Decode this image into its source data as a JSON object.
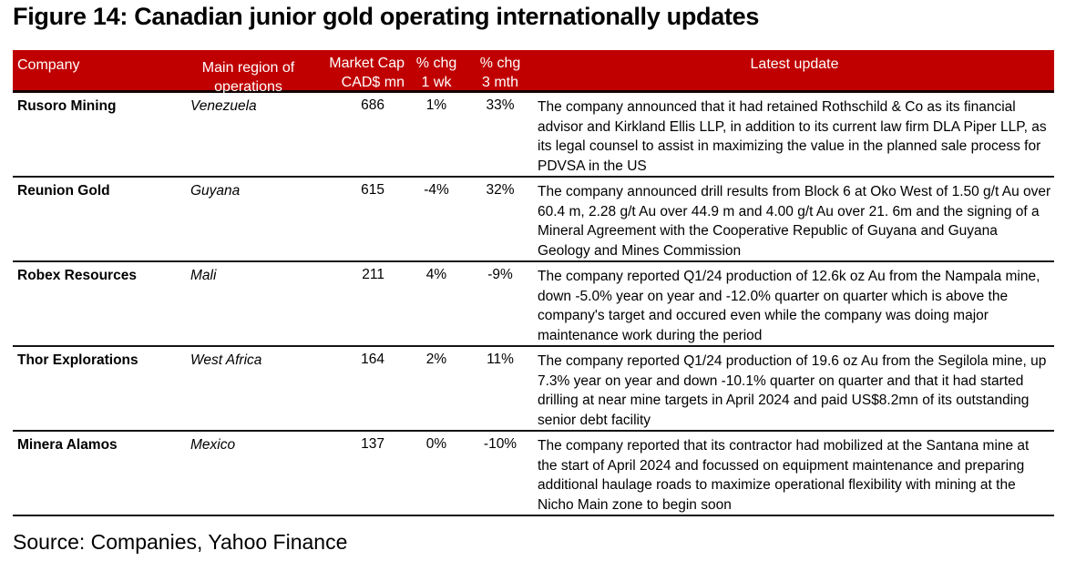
{
  "figure": {
    "title": "Figure 14: Canadian junior gold operating internationally updates",
    "source": "Source: Companies, Yahoo Finance"
  },
  "colors": {
    "header_bg": "#C00000",
    "header_text": "#FFFFFF",
    "body_text": "#000000",
    "rule": "#141414"
  },
  "table": {
    "headers": {
      "company": "Company",
      "region_line1": "Main region of",
      "region_line2": "operations",
      "mcap_line1": "Market Cap",
      "mcap_line2": "CAD$ mn",
      "chg1_line1": "% chg",
      "chg1_line2": "1 wk",
      "chg3_line1": "% chg",
      "chg3_line2": "3 mth",
      "update": "Latest update"
    },
    "rows": [
      {
        "company": "Rusoro Mining",
        "region": "Venezuela",
        "market_cap": "686",
        "chg_1wk": "1%",
        "chg_3mth": "33%",
        "update": "The company announced that it had retained Rothschild & Co as its financial advisor and Kirkland Ellis LLP, in addition to its current law firm DLA Piper LLP, as its legal counsel to assist in maximizing the value in the planned sale process for PDVSA in the US"
      },
      {
        "company": "Reunion Gold",
        "region": "Guyana",
        "market_cap": "615",
        "chg_1wk": "-4%",
        "chg_3mth": "32%",
        "update": "The company announced drill results from Block 6 at Oko West of 1.50 g/t Au over 60.4 m, 2.28 g/t Au over 44.9 m and 4.00 g/t Au over 21. 6m and the signing of a Mineral Agreement with the Cooperative Republic of Guyana and Guyana Geology and Mines Commission"
      },
      {
        "company": "Robex Resources",
        "region": "Mali",
        "market_cap": "211",
        "chg_1wk": "4%",
        "chg_3mth": "-9%",
        "update": "The company reported Q1/24 production of 12.6k oz Au from the Nampala mine, down -5.0% year on year and -12.0% quarter on quarter which is above the company's target and occured even while the company was doing major maintenance work during the period"
      },
      {
        "company": "Thor Explorations",
        "region": "West Africa",
        "market_cap": "164",
        "chg_1wk": "2%",
        "chg_3mth": "11%",
        "update": "The company reported Q1/24 production of 19.6 oz Au from the Segilola mine, up 7.3% year on year and down -10.1% quarter on quarter and that it had started drilling at near mine targets in April 2024 and paid US$8.2mn of its outstanding senior debt facility"
      },
      {
        "company": "Minera Alamos",
        "region": "Mexico",
        "market_cap": "137",
        "chg_1wk": "0%",
        "chg_3mth": "-10%",
        "update": "The company reported that its contractor had mobilized at the Santana mine at the start of April 2024 and focussed on equipment maintenance and preparing additional haulage roads to maximize operational flexibility with mining at the Nicho Main zone to begin soon"
      }
    ]
  }
}
